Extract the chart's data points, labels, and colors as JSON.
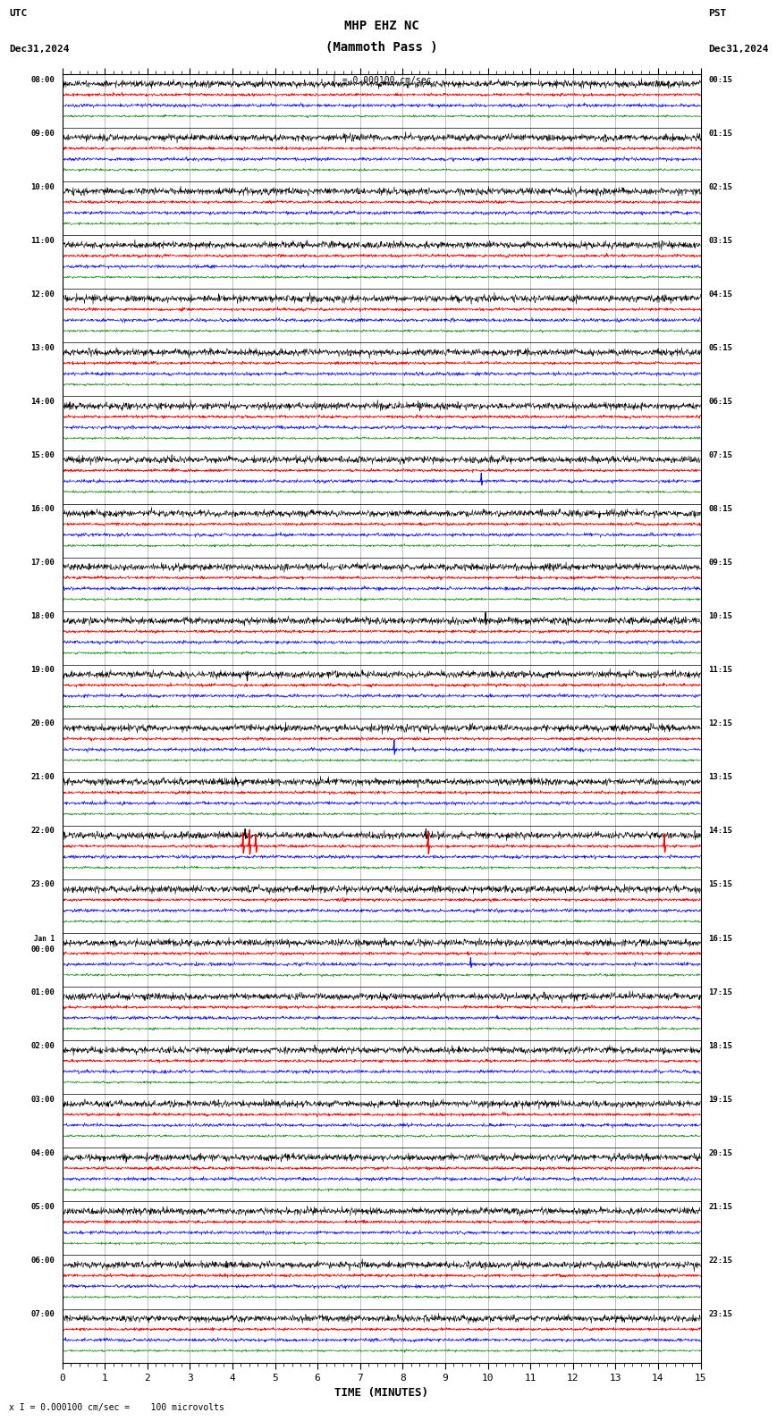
{
  "title_line1": "MHP EHZ NC",
  "title_line2": "(Mammoth Pass )",
  "scale_label": "I = 0.000100 cm/sec",
  "left_label_top": "UTC",
  "left_label_date": "Dec31,2024",
  "right_label_top": "PST",
  "right_label_date": "Dec31,2024",
  "bottom_label": "TIME (MINUTES)",
  "footer_label": "x I = 0.000100 cm/sec =    100 microvolts",
  "x_min": 0,
  "x_max": 15,
  "x_ticks": [
    0,
    1,
    2,
    3,
    4,
    5,
    6,
    7,
    8,
    9,
    10,
    11,
    12,
    13,
    14,
    15
  ],
  "colors": [
    "black",
    "red",
    "blue",
    "green"
  ],
  "background": "white",
  "utc_times": [
    "08:00",
    "09:00",
    "10:00",
    "11:00",
    "12:00",
    "13:00",
    "14:00",
    "15:00",
    "16:00",
    "17:00",
    "18:00",
    "19:00",
    "20:00",
    "21:00",
    "22:00",
    "23:00",
    "Jan 1\n00:00",
    "01:00",
    "02:00",
    "03:00",
    "04:00",
    "05:00",
    "06:00",
    "07:00"
  ],
  "pst_times": [
    "00:15",
    "01:15",
    "02:15",
    "03:15",
    "04:15",
    "05:15",
    "06:15",
    "07:15",
    "08:15",
    "09:15",
    "10:15",
    "11:15",
    "12:15",
    "13:15",
    "14:15",
    "15:15",
    "16:15",
    "17:15",
    "18:15",
    "19:15",
    "20:15",
    "21:15",
    "22:15",
    "23:15"
  ],
  "num_rows": 24,
  "traces_per_row": 4,
  "noise_amp_black": 0.03,
  "noise_amp_red": 0.012,
  "noise_amp_blue": 0.015,
  "noise_amp_green": 0.01,
  "lw_black": 0.4,
  "lw_red": 0.5,
  "lw_blue": 0.4,
  "lw_green": 0.4
}
